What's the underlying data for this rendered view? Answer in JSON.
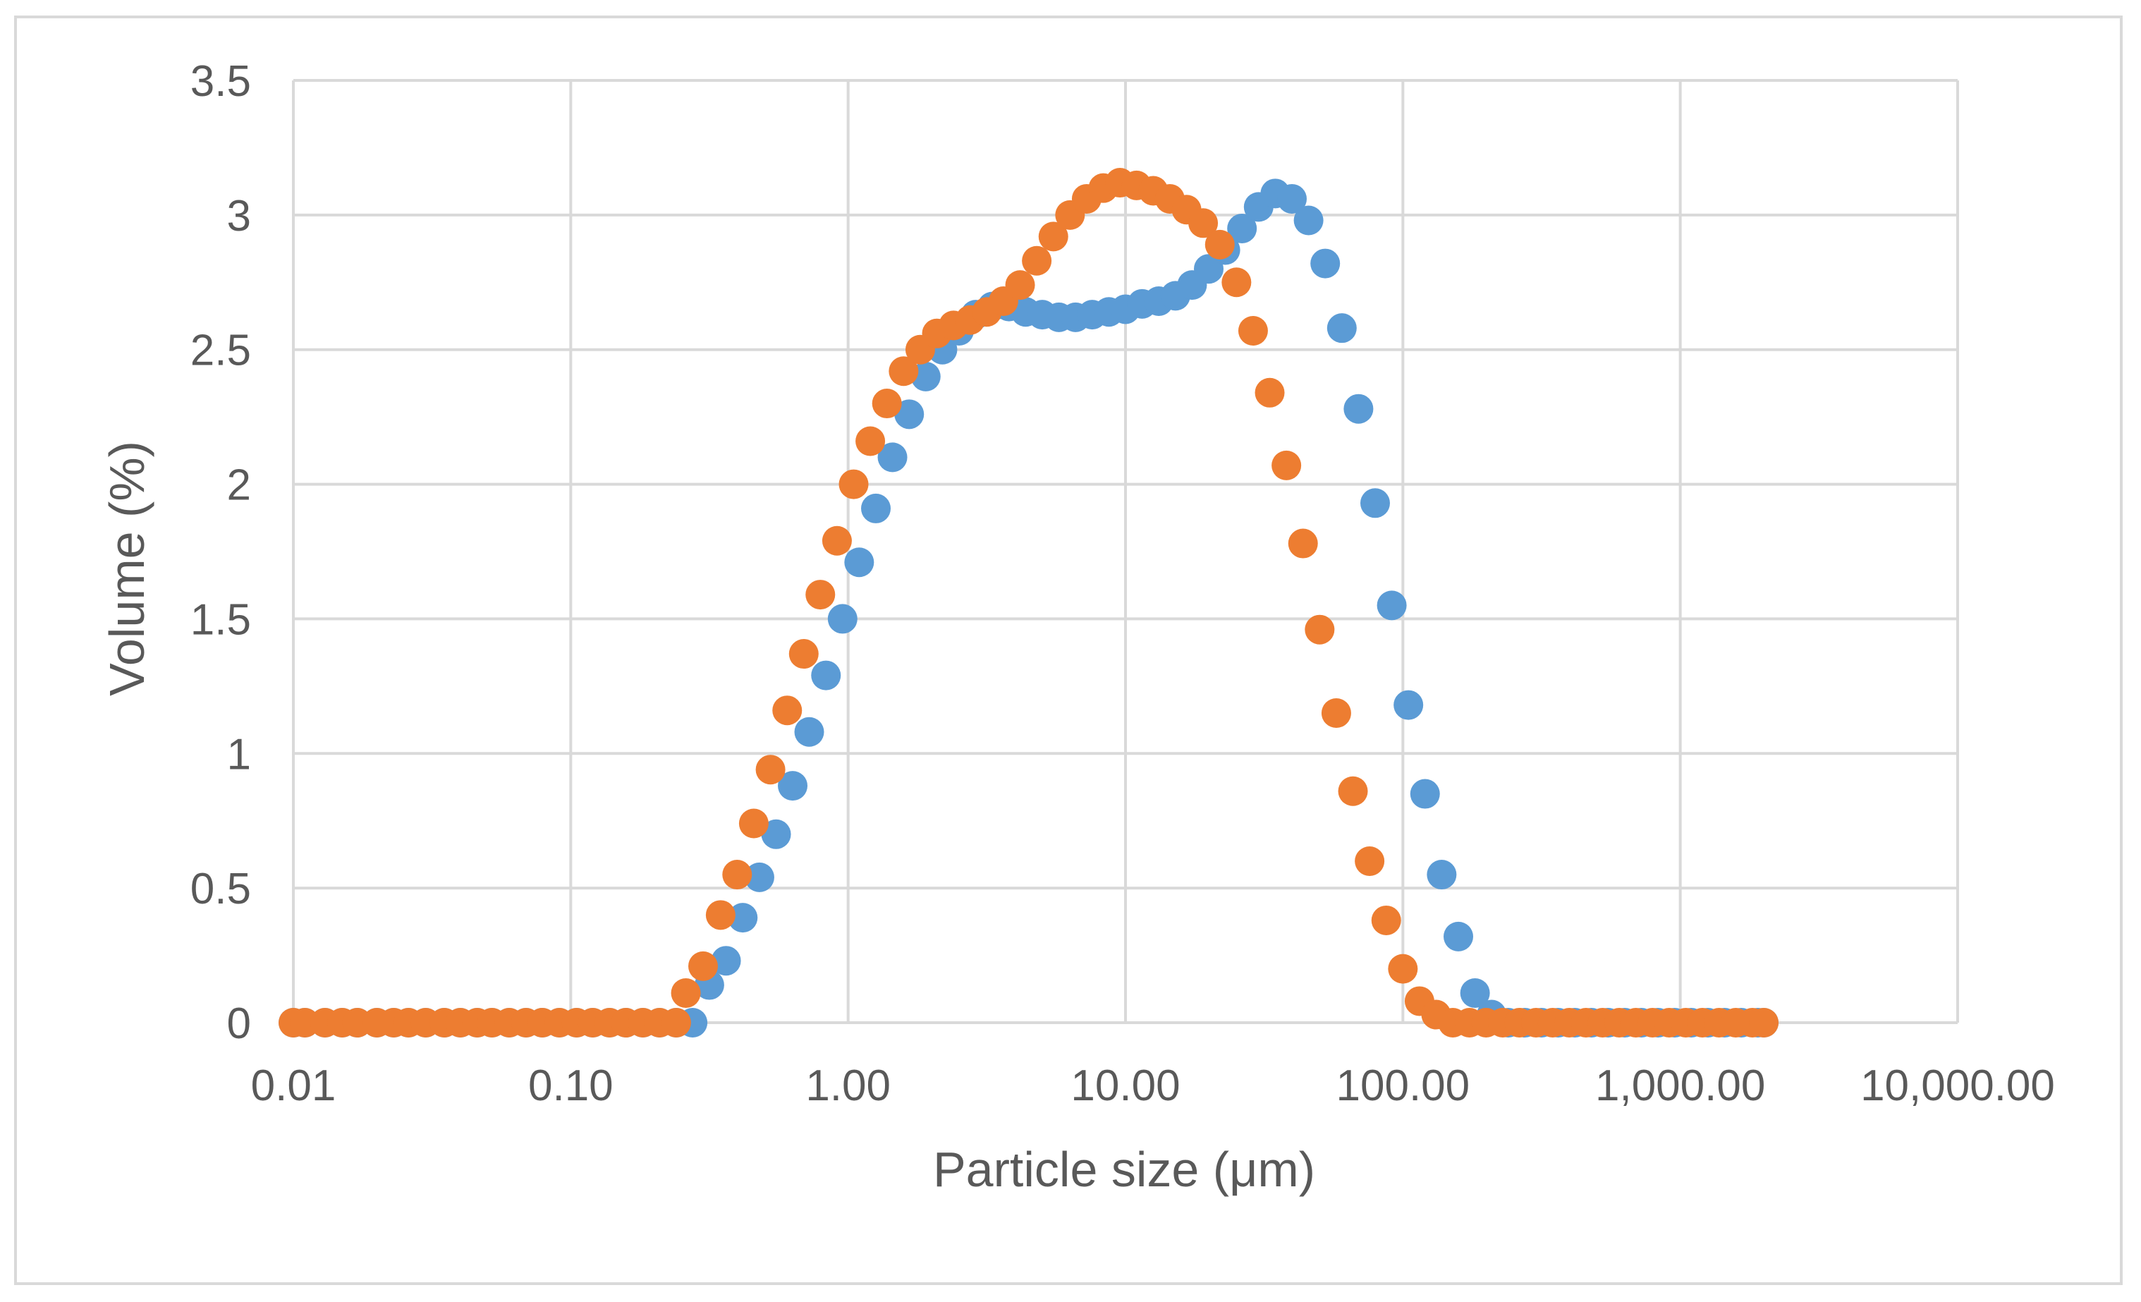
{
  "chart_data": {
    "type": "scatter",
    "title": "",
    "xlabel": "Particle size (μm)",
    "ylabel": "Volume (%)",
    "x_scale": "log",
    "xlim": [
      0.01,
      10000
    ],
    "ylim": [
      0,
      3.5
    ],
    "grid": true,
    "legend": "none",
    "x_tick_labels": [
      "0.01",
      "0.10",
      "1.00",
      "10.00",
      "100.00",
      "1,000.00",
      "10,000.00"
    ],
    "y_tick_labels": [
      "0",
      "0.5",
      "1",
      "1.5",
      "2",
      "2.5",
      "3",
      "3.5"
    ],
    "series": [
      {
        "color": "#5b9bd5",
        "x": [
          0.01,
          0.011,
          0.013,
          0.015,
          0.017,
          0.02,
          0.023,
          0.026,
          0.03,
          0.035,
          0.04,
          0.046,
          0.052,
          0.06,
          0.069,
          0.079,
          0.091,
          0.105,
          0.12,
          0.138,
          0.158,
          0.182,
          0.209,
          0.24,
          0.275,
          0.316,
          0.363,
          0.417,
          0.479,
          0.55,
          0.631,
          0.724,
          0.832,
          0.955,
          1.096,
          1.259,
          1.445,
          1.66,
          1.905,
          2.188,
          2.512,
          2.884,
          3.311,
          3.802,
          4.365,
          5.012,
          5.754,
          6.607,
          7.586,
          8.71,
          10.0,
          11.48,
          13.18,
          15.14,
          17.38,
          19.95,
          22.91,
          26.3,
          30.2,
          34.67,
          39.81,
          45.71,
          52.48,
          60.26,
          69.18,
          79.43,
          91.2,
          104.7,
          120.2,
          138.0,
          158.5,
          182.0,
          208.9,
          239.9,
          275.4,
          316.2,
          363.1,
          416.9,
          478.6,
          549.5,
          631.0,
          724.4,
          831.8,
          955.0,
          1096,
          1259,
          1445,
          1660,
          1905,
          2000
        ],
        "y": [
          0,
          0,
          0,
          0,
          0,
          0,
          0,
          0,
          0,
          0,
          0,
          0,
          0,
          0,
          0,
          0,
          0,
          0,
          0,
          0,
          0,
          0,
          0,
          0,
          0.0,
          0.14,
          0.23,
          0.39,
          0.54,
          0.7,
          0.88,
          1.08,
          1.29,
          1.5,
          1.71,
          1.91,
          2.1,
          2.26,
          2.4,
          2.5,
          2.57,
          2.63,
          2.66,
          2.66,
          2.64,
          2.63,
          2.62,
          2.62,
          2.63,
          2.64,
          2.65,
          2.67,
          2.68,
          2.7,
          2.74,
          2.8,
          2.87,
          2.95,
          3.03,
          3.08,
          3.06,
          2.98,
          2.82,
          2.58,
          2.28,
          1.93,
          1.55,
          1.18,
          0.85,
          0.55,
          0.32,
          0.11,
          0.03,
          0,
          0,
          0,
          0,
          0,
          0,
          0,
          0,
          0,
          0,
          0,
          0,
          0,
          0,
          0,
          0,
          0
        ]
      },
      {
        "color": "#ed7d31",
        "x": [
          0.01,
          0.011,
          0.013,
          0.015,
          0.017,
          0.02,
          0.023,
          0.026,
          0.03,
          0.035,
          0.04,
          0.046,
          0.052,
          0.06,
          0.069,
          0.079,
          0.091,
          0.105,
          0.12,
          0.138,
          0.158,
          0.182,
          0.209,
          0.24,
          0.26,
          0.3,
          0.347,
          0.398,
          0.457,
          0.525,
          0.603,
          0.692,
          0.794,
          0.912,
          1.047,
          1.202,
          1.38,
          1.585,
          1.82,
          2.089,
          2.399,
          2.754,
          3.162,
          3.631,
          4.169,
          4.786,
          5.495,
          6.31,
          7.244,
          8.318,
          9.55,
          10.96,
          12.59,
          14.45,
          16.6,
          19.05,
          21.88,
          25.12,
          28.84,
          33.11,
          38.02,
          43.65,
          50.12,
          57.54,
          66.07,
          75.86,
          87.1,
          100.0,
          114.8,
          131.8,
          151.4,
          173.8,
          199.5,
          229.1,
          263.0,
          302.0,
          346.7,
          398.1,
          457.1,
          524.8,
          602.6,
          691.8,
          794.3,
          912.0,
          1047,
          1202,
          1380,
          1585,
          1820,
          2000
        ],
        "y": [
          0,
          0,
          0,
          0,
          0,
          0,
          0,
          0,
          0,
          0,
          0,
          0,
          0,
          0,
          0,
          0,
          0,
          0,
          0,
          0,
          0,
          0,
          0,
          0,
          0.11,
          0.21,
          0.4,
          0.55,
          0.74,
          0.94,
          1.16,
          1.37,
          1.59,
          1.79,
          2.0,
          2.16,
          2.3,
          2.42,
          2.5,
          2.56,
          2.59,
          2.61,
          2.64,
          2.68,
          2.74,
          2.83,
          2.92,
          3.0,
          3.06,
          3.1,
          3.12,
          3.11,
          3.09,
          3.06,
          3.02,
          2.97,
          2.89,
          2.75,
          2.57,
          2.34,
          2.07,
          1.78,
          1.46,
          1.15,
          0.86,
          0.6,
          0.38,
          0.2,
          0.08,
          0.03,
          0,
          0,
          0,
          0,
          0,
          0,
          0,
          0,
          0,
          0,
          0,
          0,
          0,
          0,
          0,
          0,
          0,
          0,
          0,
          0
        ]
      }
    ]
  }
}
